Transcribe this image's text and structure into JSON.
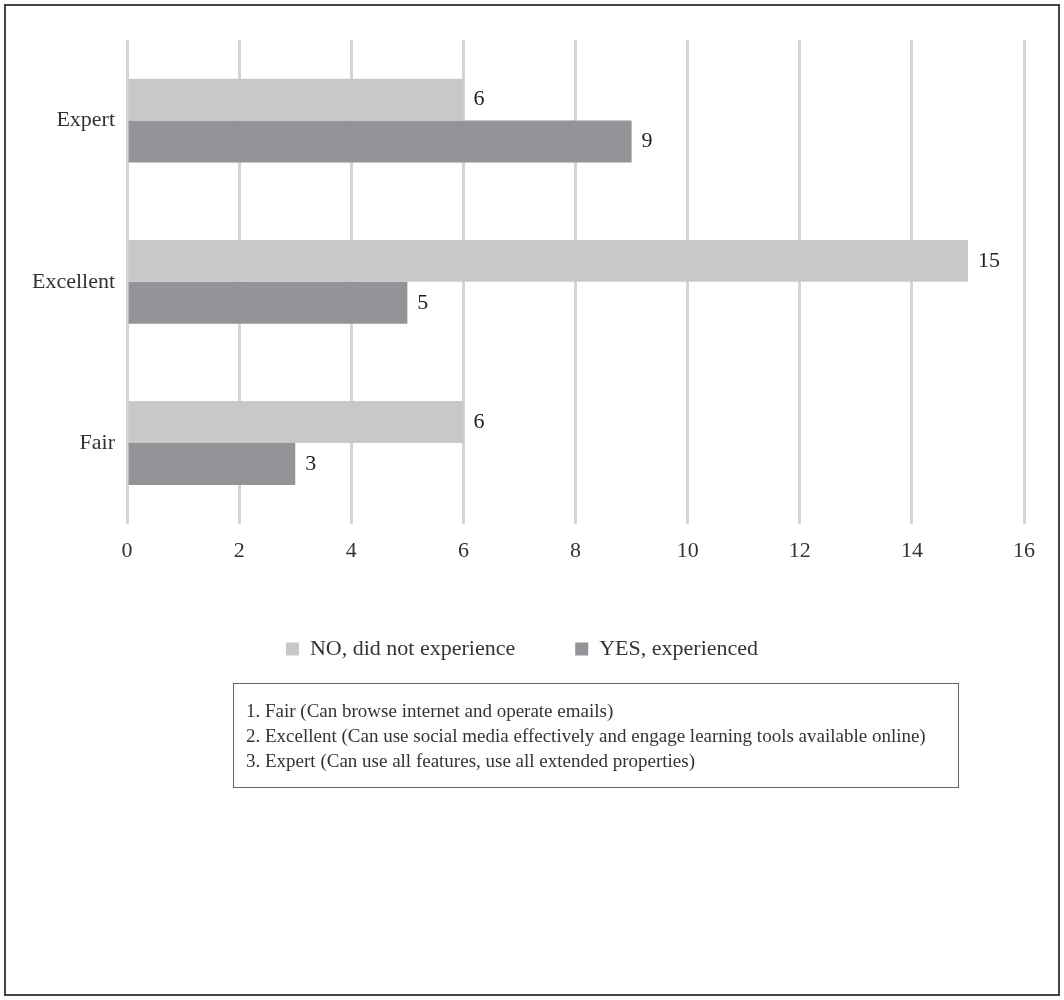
{
  "chart_data": {
    "type": "bar",
    "orientation": "horizontal",
    "categories": [
      "Expert",
      "Excellent",
      "Fair"
    ],
    "series": [
      {
        "name": "NO, did not experience",
        "color": "#c8c8c9",
        "values": [
          6,
          15,
          6
        ]
      },
      {
        "name": "YES, experienced",
        "color": "#939497",
        "values": [
          9,
          5,
          3
        ]
      }
    ],
    "xlim": [
      0,
      16
    ],
    "xticks": [
      0,
      2,
      4,
      6,
      8,
      10,
      12,
      14,
      16
    ],
    "grid": "x",
    "legend": "bottom",
    "data_labels": true,
    "annotations": [
      "1. Fair (Can browse internet and operate emails)",
      "2. Excellent (Can use social media effectively and engage learning tools available online)",
      "3. Expert (Can use all features, use all extended properties)"
    ]
  }
}
